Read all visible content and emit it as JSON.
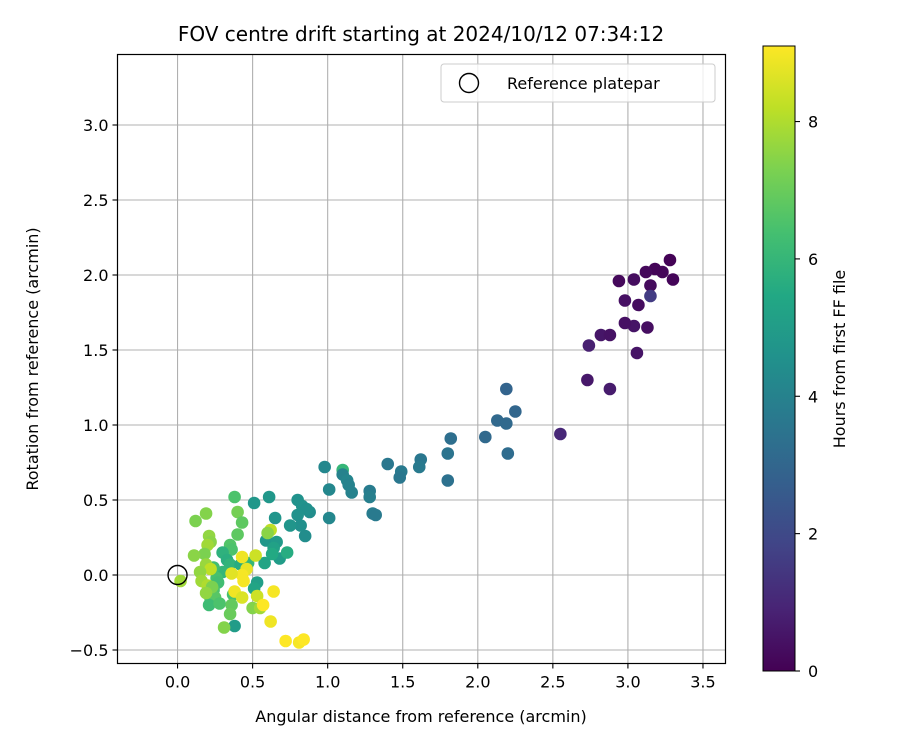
{
  "chart_data": {
    "type": "scatter",
    "title": "FOV centre drift starting at 2024/10/12 07:34:12",
    "xlabel": "Angular distance from reference (arcmin)",
    "ylabel": "Rotation from reference (arcmin)",
    "xlim": [
      -0.4,
      3.65
    ],
    "ylim": [
      -0.59,
      3.47
    ],
    "xticks": [
      "0.0",
      "0.5",
      "1.0",
      "1.5",
      "2.0",
      "2.5",
      "3.0",
      "3.5"
    ],
    "yticks": [
      "−0.5",
      "0.0",
      "0.5",
      "1.0",
      "1.5",
      "2.0",
      "2.5",
      "3.0"
    ],
    "grid": true,
    "legend": {
      "position": "top-right",
      "entries": [
        "Reference platepar"
      ]
    },
    "reference_point": {
      "x": 0.0,
      "y": 0.0
    },
    "colorbar": {
      "label": "Hours from first FF file",
      "range": [
        0,
        9.1
      ],
      "ticks": [
        "0",
        "2",
        "4",
        "6",
        "8"
      ],
      "colormap": "viridis"
    },
    "points": [
      [
        3.28,
        2.1,
        0.05
      ],
      [
        3.23,
        2.02,
        0.15
      ],
      [
        3.18,
        2.04,
        0.1
      ],
      [
        3.12,
        2.02,
        0.2
      ],
      [
        3.3,
        1.97,
        0.1
      ],
      [
        3.04,
        1.97,
        0.3
      ],
      [
        2.94,
        1.96,
        0.2
      ],
      [
        3.15,
        1.93,
        0.25
      ],
      [
        3.15,
        1.86,
        1.6
      ],
      [
        2.98,
        1.83,
        0.4
      ],
      [
        3.07,
        1.8,
        0.3
      ],
      [
        3.13,
        1.65,
        0.35
      ],
      [
        3.04,
        1.66,
        0.5
      ],
      [
        2.98,
        1.68,
        0.4
      ],
      [
        2.82,
        1.6,
        0.55
      ],
      [
        2.88,
        1.6,
        0.45
      ],
      [
        2.74,
        1.53,
        0.8
      ],
      [
        3.06,
        1.48,
        0.5
      ],
      [
        2.73,
        1.3,
        0.6
      ],
      [
        2.88,
        1.24,
        0.7
      ],
      [
        2.55,
        0.94,
        1.0
      ],
      [
        2.19,
        1.24,
        2.9
      ],
      [
        2.25,
        1.09,
        3.0
      ],
      [
        2.13,
        1.03,
        3.1
      ],
      [
        2.19,
        1.01,
        3.1
      ],
      [
        2.05,
        0.92,
        3.1
      ],
      [
        1.82,
        0.91,
        3.3
      ],
      [
        2.2,
        0.81,
        3.2
      ],
      [
        1.8,
        0.81,
        3.5
      ],
      [
        1.8,
        0.63,
        3.4
      ],
      [
        1.62,
        0.77,
        3.6
      ],
      [
        1.61,
        0.72,
        3.7
      ],
      [
        1.49,
        0.69,
        3.7
      ],
      [
        1.48,
        0.65,
        3.6
      ],
      [
        1.4,
        0.74,
        3.6
      ],
      [
        1.28,
        0.56,
        3.8
      ],
      [
        1.28,
        0.52,
        3.9
      ],
      [
        1.3,
        0.41,
        3.8
      ],
      [
        1.32,
        0.4,
        3.7
      ],
      [
        1.1,
        0.7,
        6.0
      ],
      [
        1.1,
        0.67,
        4.0
      ],
      [
        1.13,
        0.63,
        4.1
      ],
      [
        1.14,
        0.6,
        4.0
      ],
      [
        1.16,
        0.55,
        4.0
      ],
      [
        0.98,
        0.72,
        4.2
      ],
      [
        1.01,
        0.57,
        4.2
      ],
      [
        1.01,
        0.38,
        4.2
      ],
      [
        0.8,
        0.5,
        4.6
      ],
      [
        0.83,
        0.46,
        4.6
      ],
      [
        0.88,
        0.42,
        4.4
      ],
      [
        0.86,
        0.44,
        4.5
      ],
      [
        0.8,
        0.4,
        4.6
      ],
      [
        0.82,
        0.33,
        4.5
      ],
      [
        0.85,
        0.26,
        4.4
      ],
      [
        0.75,
        0.33,
        4.7
      ],
      [
        0.61,
        0.52,
        4.8
      ],
      [
        0.51,
        0.48,
        4.8
      ],
      [
        0.65,
        0.38,
        4.7
      ],
      [
        0.59,
        0.23,
        4.8
      ],
      [
        0.66,
        0.22,
        4.9
      ],
      [
        0.64,
        0.18,
        5.2
      ],
      [
        0.68,
        0.11,
        5.0
      ],
      [
        0.73,
        0.15,
        5.6
      ],
      [
        0.63,
        0.14,
        5.5
      ],
      [
        0.58,
        0.08,
        5.3
      ],
      [
        0.53,
        -0.05,
        5.1
      ],
      [
        0.51,
        -0.09,
        5.3
      ],
      [
        0.38,
        -0.34,
        5.0
      ],
      [
        0.38,
        0.52,
        6.5
      ],
      [
        0.4,
        0.42,
        7.2
      ],
      [
        0.43,
        0.35,
        6.8
      ],
      [
        0.4,
        0.27,
        6.8
      ],
      [
        0.35,
        0.2,
        6.6
      ],
      [
        0.36,
        0.17,
        6.5
      ],
      [
        0.3,
        0.15,
        5.8
      ],
      [
        0.33,
        0.1,
        5.7
      ],
      [
        0.35,
        0.07,
        5.9
      ],
      [
        0.42,
        0.07,
        5.6
      ],
      [
        0.47,
        0.08,
        6.0
      ],
      [
        0.3,
        0.02,
        6.0
      ],
      [
        0.24,
        0.05,
        6.3
      ],
      [
        0.26,
        -0.02,
        6.4
      ],
      [
        0.27,
        -0.05,
        6.3
      ],
      [
        0.24,
        -0.1,
        6.5
      ],
      [
        0.22,
        -0.16,
        6.6
      ],
      [
        0.25,
        -0.15,
        6.7
      ],
      [
        0.21,
        -0.2,
        6.2
      ],
      [
        0.28,
        -0.19,
        6.5
      ],
      [
        0.37,
        -0.13,
        6.4
      ],
      [
        0.36,
        -0.2,
        6.9
      ],
      [
        0.35,
        -0.26,
        7.0
      ],
      [
        0.31,
        -0.35,
        7.4
      ],
      [
        0.5,
        -0.22,
        7.4
      ],
      [
        0.55,
        -0.22,
        7.8
      ],
      [
        0.12,
        0.36,
        7.3
      ],
      [
        0.19,
        0.41,
        7.4
      ],
      [
        0.21,
        0.26,
        7.6
      ],
      [
        0.22,
        0.22,
        7.5
      ],
      [
        0.2,
        0.2,
        7.8
      ],
      [
        0.18,
        0.14,
        7.3
      ],
      [
        0.11,
        0.13,
        7.5
      ],
      [
        0.19,
        0.07,
        7.7
      ],
      [
        0.22,
        0.04,
        8.2
      ],
      [
        0.15,
        0.02,
        7.6
      ],
      [
        0.16,
        -0.04,
        7.8
      ],
      [
        0.2,
        -0.07,
        8.0
      ],
      [
        0.23,
        -0.08,
        7.3
      ],
      [
        0.19,
        -0.12,
        7.6
      ],
      [
        0.02,
        -0.04,
        7.8
      ],
      [
        0.62,
        0.3,
        8.2
      ],
      [
        0.6,
        0.28,
        7.5
      ],
      [
        0.52,
        0.13,
        8.4
      ],
      [
        0.43,
        0.12,
        8.9
      ],
      [
        0.46,
        0.04,
        8.8
      ],
      [
        0.43,
        0.0,
        9.0
      ],
      [
        0.36,
        0.01,
        8.7
      ],
      [
        0.44,
        -0.04,
        9.0
      ],
      [
        0.38,
        -0.11,
        8.9
      ],
      [
        0.43,
        -0.15,
        8.6
      ],
      [
        0.53,
        -0.14,
        8.4
      ],
      [
        0.57,
        -0.2,
        9.1
      ],
      [
        0.64,
        -0.11,
        9.0
      ],
      [
        0.62,
        -0.31,
        8.9
      ],
      [
        0.72,
        -0.44,
        9.1
      ],
      [
        0.81,
        -0.45,
        9.0
      ],
      [
        0.84,
        -0.43,
        9.1
      ]
    ]
  }
}
